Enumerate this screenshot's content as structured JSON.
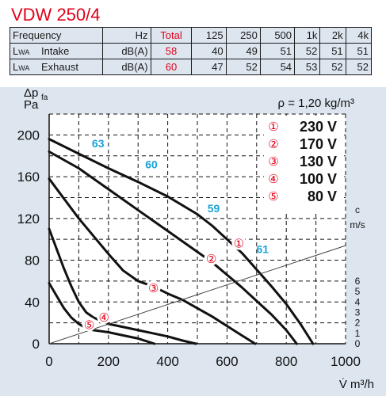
{
  "model_title": "VDW 250/4",
  "table": {
    "header": {
      "col1": "Frequency",
      "unit": "Hz",
      "total": "Total",
      "bands": [
        "125",
        "250",
        "500",
        "1k",
        "2k",
        "4k"
      ]
    },
    "rows": [
      {
        "label": "L",
        "label_sub": "WA",
        "type": "Intake",
        "unit": "dB(A)",
        "total": "58",
        "values": [
          "40",
          "49",
          "51",
          "52",
          "51",
          "51"
        ]
      },
      {
        "label": "L",
        "label_sub": "WA",
        "type": "Exhaust",
        "unit": "dB(A)",
        "total": "60",
        "values": [
          "47",
          "52",
          "54",
          "53",
          "52",
          "52"
        ]
      }
    ]
  },
  "chart_data": {
    "type": "line",
    "ylabel": "Δp",
    "ylabel_sub": "fa",
    "ylabel_unit": "Pa",
    "xlabel": "V̇ m³/h",
    "density_note": "ρ = 1,20 kg/m³",
    "xlim": [
      0,
      1000
    ],
    "ylim": [
      0,
      220
    ],
    "x_ticks": [
      "0",
      "200",
      "400",
      "600",
      "800",
      "1000"
    ],
    "y_ticks": [
      "0",
      "40",
      "80",
      "120",
      "160",
      "200"
    ],
    "c_axis": {
      "label_top": "c",
      "label_unit": "m/s",
      "ticks": [
        "0",
        "1",
        "2",
        "3",
        "4",
        "5",
        "6"
      ],
      "tick_values": [
        0,
        10,
        20,
        30,
        40,
        50,
        60
      ]
    },
    "grid": true,
    "legend": [
      {
        "marker": "①",
        "label": "230 V"
      },
      {
        "marker": "②",
        "label": "170 V"
      },
      {
        "marker": "③",
        "label": "130 V"
      },
      {
        "marker": "④",
        "label": "100 V"
      },
      {
        "marker": "⑤",
        "label": "80 V"
      }
    ],
    "series": [
      {
        "name": "230 V",
        "marker": "①",
        "x": [
          0,
          100,
          200,
          300,
          400,
          500,
          550,
          600,
          650,
          700,
          750,
          800,
          850,
          890
        ],
        "y": [
          196,
          182,
          168,
          155,
          141,
          124,
          113,
          100,
          87,
          71,
          55,
          38,
          18,
          0
        ]
      },
      {
        "name": "170 V",
        "marker": "②",
        "x": [
          0,
          100,
          200,
          300,
          400,
          500,
          550,
          600,
          650,
          700,
          750,
          800,
          835
        ],
        "y": [
          184,
          168,
          148,
          128,
          108,
          88,
          78,
          66,
          54,
          41,
          28,
          13,
          0
        ]
      },
      {
        "name": "130 V",
        "marker": "③",
        "x": [
          0,
          50,
          100,
          150,
          200,
          250,
          300,
          350,
          400,
          450,
          500,
          550,
          600,
          650,
          695
        ],
        "y": [
          158,
          139,
          120,
          103,
          86,
          70,
          60,
          55,
          48,
          42,
          34,
          26,
          17,
          8,
          0
        ]
      },
      {
        "name": "100 V",
        "marker": "④",
        "x": [
          0,
          25,
          50,
          75,
          100,
          125,
          150,
          200,
          250,
          300,
          350,
          400,
          450,
          495
        ],
        "y": [
          110,
          91,
          72,
          55,
          40,
          30,
          25,
          19,
          16,
          13,
          10,
          7,
          3,
          0
        ]
      },
      {
        "name": "80 V",
        "marker": "⑤",
        "x": [
          0,
          25,
          50,
          75,
          100,
          125,
          150,
          200,
          250,
          300,
          355
        ],
        "y": [
          58,
          46,
          34,
          25,
          19,
          15,
          13,
          11,
          8,
          5,
          0
        ]
      },
      {
        "name": "System line",
        "x": [
          0,
          1000
        ],
        "y": [
          0,
          94
        ]
      }
    ],
    "annotations": [
      {
        "text": "63",
        "x": 165,
        "y": 188
      },
      {
        "text": "60",
        "x": 345,
        "y": 168
      },
      {
        "text": "59",
        "x": 555,
        "y": 126
      },
      {
        "text": "61",
        "x": 720,
        "y": 87
      }
    ],
    "curve_markers": [
      {
        "text": "①",
        "x": 640,
        "y": 96
      },
      {
        "text": "②",
        "x": 547,
        "y": 81
      },
      {
        "text": "③",
        "x": 352,
        "y": 53
      },
      {
        "text": "④",
        "x": 185,
        "y": 25
      },
      {
        "text": "⑤",
        "x": 135,
        "y": 18
      }
    ],
    "colors": {
      "curve": "#111111",
      "annotation": "#1aa3d9",
      "marker": "#e2001a",
      "grid": "#111111",
      "system_line": "#444444"
    }
  }
}
